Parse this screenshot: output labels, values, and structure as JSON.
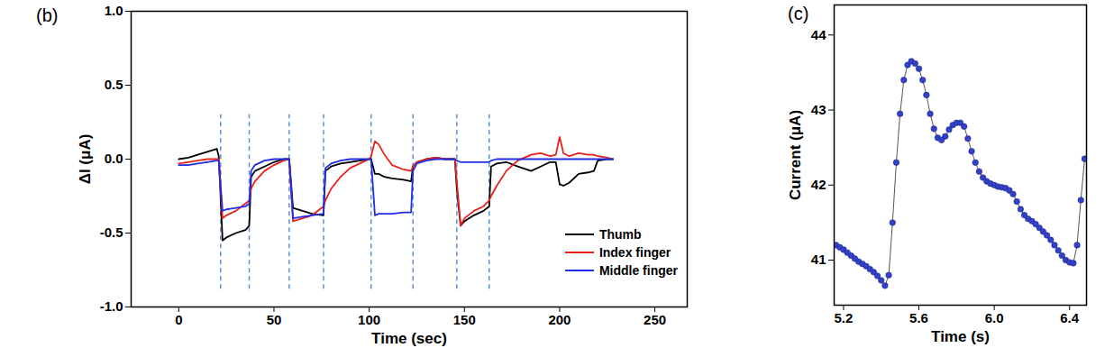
{
  "chart_data": [
    {
      "type": "line",
      "panel_label": "(b)",
      "x_label": "Time (sec)",
      "y_label": "ΔI (μA)",
      "xlim": [
        -25,
        267
      ],
      "xticks": [
        0,
        50,
        100,
        150,
        200,
        250
      ],
      "ylim": [
        -1,
        1
      ],
      "yticks": [
        {
          "value": -1,
          "label": "-1.0"
        },
        -0.5,
        {
          "value": 0,
          "label": "0.0"
        },
        0.5,
        {
          "value": 1,
          "label": "1.0"
        }
      ],
      "grid": false,
      "legend": "lower right",
      "x": [
        0,
        5,
        10,
        15,
        20,
        21,
        23,
        25,
        30,
        35,
        37,
        38,
        40,
        45,
        50,
        55,
        58,
        60,
        65,
        70,
        76,
        77,
        80,
        85,
        90,
        95,
        100,
        101,
        103,
        105,
        108,
        112,
        118,
        122,
        123,
        125,
        130,
        135,
        140,
        145,
        146,
        148,
        150,
        155,
        160,
        163,
        164,
        167,
        172,
        178,
        185,
        190,
        195,
        198,
        200,
        202,
        205,
        210,
        215,
        218,
        220,
        225,
        228
      ],
      "series": [
        {
          "name": "Thumb",
          "color": "#000000",
          "line_style": "solid",
          "values": [
            0,
            0.01,
            0.03,
            0.05,
            0.07,
            0.02,
            -0.55,
            -0.53,
            -0.5,
            -0.48,
            -0.45,
            -0.12,
            -0.08,
            -0.05,
            -0.02,
            0,
            0,
            -0.33,
            -0.35,
            -0.37,
            -0.38,
            -0.08,
            -0.05,
            -0.03,
            -0.02,
            -0.01,
            0,
            0,
            -0.1,
            -0.1,
            -0.12,
            -0.13,
            -0.14,
            -0.15,
            -0.05,
            -0.02,
            0,
            0.01,
            0,
            0,
            -0.2,
            -0.45,
            -0.42,
            -0.38,
            -0.35,
            -0.32,
            -0.05,
            -0.03,
            -0.02,
            -0.05,
            -0.08,
            -0.05,
            -0.02,
            -0.02,
            -0.17,
            -0.18,
            -0.16,
            -0.1,
            -0.09,
            -0.08,
            -0.01,
            0,
            0
          ]
        },
        {
          "name": "Index finger",
          "color": "#e8211b",
          "line_style": "solid",
          "values": [
            -0.03,
            -0.02,
            -0.01,
            0,
            0,
            0,
            -0.4,
            -0.38,
            -0.35,
            -0.3,
            -0.28,
            -0.2,
            -0.15,
            -0.08,
            -0.04,
            -0.01,
            0,
            -0.42,
            -0.4,
            -0.38,
            -0.32,
            -0.28,
            -0.2,
            -0.12,
            -0.06,
            -0.03,
            0,
            0.02,
            0.12,
            0.1,
            0.03,
            -0.04,
            -0.07,
            -0.08,
            -0.05,
            -0.02,
            0,
            0.01,
            0,
            0,
            -0.15,
            -0.45,
            -0.4,
            -0.35,
            -0.32,
            -0.28,
            -0.25,
            -0.18,
            -0.08,
            -0.01,
            0.03,
            0.04,
            0.02,
            0.03,
            0.15,
            0.04,
            0.02,
            0.04,
            0.03,
            0.03,
            0.02,
            0.01,
            0
          ]
        },
        {
          "name": "Middle finger",
          "color": "#1f2de8",
          "line_style": "solid",
          "values": [
            -0.04,
            -0.04,
            -0.03,
            -0.02,
            -0.01,
            -0.01,
            -0.35,
            -0.34,
            -0.33,
            -0.32,
            -0.3,
            -0.08,
            -0.04,
            -0.01,
            0,
            0,
            0,
            -0.4,
            -0.39,
            -0.38,
            -0.37,
            -0.06,
            -0.03,
            -0.01,
            0,
            0,
            0,
            0,
            -0.38,
            -0.37,
            -0.37,
            -0.37,
            -0.36,
            -0.36,
            -0.08,
            -0.03,
            -0.01,
            0,
            0,
            0,
            -0.01,
            -0.02,
            -0.02,
            -0.02,
            -0.02,
            -0.02,
            -0.01,
            0,
            0,
            0,
            0,
            0,
            0,
            0,
            0,
            0,
            0,
            0,
            0,
            0,
            0,
            0,
            0
          ]
        }
      ],
      "event_lines": {
        "values": [
          22,
          37,
          58,
          76,
          101,
          123,
          146,
          163
        ],
        "span": [
          -0.88,
          0.3
        ],
        "color": "#5b8fd6",
        "line_style": "dashed"
      }
    },
    {
      "type": "line",
      "panel_label": "(c)",
      "x_label": "Time (s)",
      "y_label": "Current (μA)",
      "xlim": [
        5.15,
        6.49
      ],
      "xticks": [
        5.2,
        5.6,
        {
          "value": 6,
          "label": "6.0"
        },
        6.4
      ],
      "ylim": [
        40.4,
        44.4
      ],
      "yticks": [
        41,
        42,
        43,
        44
      ],
      "grid": false,
      "color": "#3340c8",
      "marker": "circle",
      "x": [
        5.16,
        5.18,
        5.2,
        5.22,
        5.24,
        5.26,
        5.28,
        5.3,
        5.32,
        5.34,
        5.36,
        5.38,
        5.4,
        5.42,
        5.44,
        5.46,
        5.48,
        5.5,
        5.52,
        5.54,
        5.56,
        5.58,
        5.6,
        5.62,
        5.64,
        5.66,
        5.68,
        5.7,
        5.72,
        5.74,
        5.76,
        5.78,
        5.8,
        5.82,
        5.84,
        5.86,
        5.88,
        5.9,
        5.92,
        5.94,
        5.96,
        5.98,
        6,
        6.02,
        6.04,
        6.06,
        6.08,
        6.1,
        6.12,
        6.14,
        6.16,
        6.18,
        6.2,
        6.22,
        6.24,
        6.26,
        6.28,
        6.3,
        6.32,
        6.34,
        6.36,
        6.38,
        6.4,
        6.42,
        6.44,
        6.46,
        6.48
      ],
      "values": [
        41.2,
        41.17,
        41.14,
        41.1,
        41.06,
        41.02,
        40.98,
        40.95,
        40.92,
        40.88,
        40.84,
        40.79,
        40.73,
        40.66,
        40.8,
        41.5,
        42.3,
        42.95,
        43.4,
        43.6,
        43.65,
        43.62,
        43.55,
        43.4,
        43.2,
        42.95,
        42.75,
        42.63,
        42.6,
        42.65,
        42.74,
        42.8,
        42.83,
        42.83,
        42.78,
        42.62,
        42.45,
        42.3,
        42.18,
        42.1,
        42.05,
        42.02,
        42,
        41.98,
        41.97,
        41.96,
        41.93,
        41.88,
        41.78,
        41.68,
        41.6,
        41.55,
        41.52,
        41.48,
        41.43,
        41.38,
        41.33,
        41.27,
        41.2,
        41.13,
        41.06,
        41,
        40.97,
        40.96,
        41.2,
        41.8,
        42.35
      ]
    }
  ]
}
